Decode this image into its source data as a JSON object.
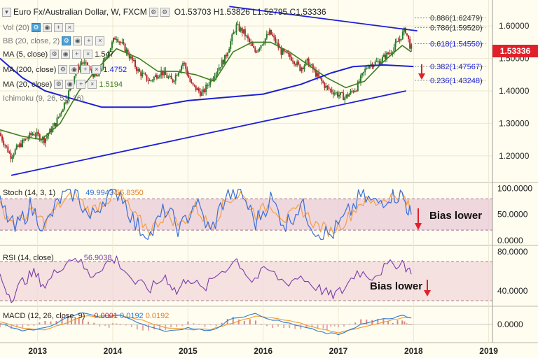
{
  "header": {
    "symbol": "Euro Fx/Australian Dollar, W, FXCM",
    "ohlc": "O1.53703  H1.53826  L1.52795  C1.53336"
  },
  "indicator_legends": [
    {
      "name": "Vol (20)",
      "value": ""
    },
    {
      "name": "BB (20, close, 2)",
      "value": ""
    },
    {
      "name": "MA (5, close)",
      "value": "1.547"
    },
    {
      "name": "MA (200, close)",
      "value": "1.4752"
    },
    {
      "name": "MA (20, close)",
      "value": "1.5194"
    },
    {
      "name": "Ichimoku (9, 26, 52, 26)",
      "value": ""
    }
  ],
  "last_price": "1.53336",
  "colors": {
    "background": "#fffdf0",
    "candle_up": "#2b7a2b",
    "candle_down": "#b8282e",
    "trendline": "#1c1fd6",
    "ma200": "#1c1fd6",
    "ma20": "#3d7d1e",
    "stoch_k": "#3a6fd8",
    "stoch_d": "#f0a04a",
    "rsi": "#7b3ea8",
    "macd": "#2f7ad0",
    "signal": "#f09a2c",
    "price_tag": "#e0202a",
    "arrow": "#e0202a"
  },
  "chart_data": {
    "type": "line",
    "title": "Euro Fx/Australian Dollar, W, FXCM",
    "x_ticks": [
      "2013",
      "2014",
      "2015",
      "2016",
      "2017",
      "2018",
      "2019"
    ],
    "y_ticks": [
      "1.20000",
      "1.30000",
      "1.40000",
      "1.50000",
      "1.60000"
    ],
    "ylim": [
      1.12,
      1.68
    ],
    "fib_levels": [
      {
        "label": "0.886(1.62479)",
        "value": 1.62479
      },
      {
        "label": "0.786(1.59520)",
        "value": 1.5952
      },
      {
        "label": "0.618(1.54550)",
        "value": 1.5455
      },
      {
        "label": "0.382(1.47567)",
        "value": 1.47567
      },
      {
        "label": "0.236(1.43248)",
        "value": 1.43248
      }
    ],
    "price_series": [
      [
        2012.5,
        1.27
      ],
      [
        2012.65,
        1.2
      ],
      [
        2012.8,
        1.24
      ],
      [
        2012.95,
        1.27
      ],
      [
        2013.1,
        1.25
      ],
      [
        2013.25,
        1.3
      ],
      [
        2013.4,
        1.38
      ],
      [
        2013.5,
        1.45
      ],
      [
        2013.6,
        1.49
      ],
      [
        2013.8,
        1.44
      ],
      [
        2013.95,
        1.52
      ],
      [
        2014.05,
        1.57
      ],
      [
        2014.2,
        1.52
      ],
      [
        2014.35,
        1.46
      ],
      [
        2014.5,
        1.43
      ],
      [
        2014.65,
        1.46
      ],
      [
        2014.8,
        1.43
      ],
      [
        2014.95,
        1.49
      ],
      [
        2015.05,
        1.42
      ],
      [
        2015.2,
        1.39
      ],
      [
        2015.35,
        1.45
      ],
      [
        2015.5,
        1.5
      ],
      [
        2015.65,
        1.6
      ],
      [
        2015.75,
        1.58
      ],
      [
        2015.9,
        1.52
      ],
      [
        2016.0,
        1.55
      ],
      [
        2016.1,
        1.58
      ],
      [
        2016.25,
        1.52
      ],
      [
        2016.4,
        1.5
      ],
      [
        2016.5,
        1.47
      ],
      [
        2016.6,
        1.49
      ],
      [
        2016.75,
        1.44
      ],
      [
        2016.85,
        1.41
      ],
      [
        2017.0,
        1.39
      ],
      [
        2017.1,
        1.38
      ],
      [
        2017.25,
        1.41
      ],
      [
        2017.4,
        1.48
      ],
      [
        2017.55,
        1.49
      ],
      [
        2017.7,
        1.52
      ],
      [
        2017.8,
        1.55
      ],
      [
        2017.9,
        1.59
      ],
      [
        2017.97,
        1.533
      ]
    ],
    "ma20_series": [
      [
        2012.5,
        1.28
      ],
      [
        2012.8,
        1.26
      ],
      [
        2013.05,
        1.25
      ],
      [
        2013.3,
        1.3
      ],
      [
        2013.55,
        1.4
      ],
      [
        2013.8,
        1.47
      ],
      [
        2014.05,
        1.53
      ],
      [
        2014.35,
        1.5
      ],
      [
        2014.6,
        1.46
      ],
      [
        2014.85,
        1.46
      ],
      [
        2015.1,
        1.45
      ],
      [
        2015.35,
        1.43
      ],
      [
        2015.6,
        1.52
      ],
      [
        2015.85,
        1.55
      ],
      [
        2016.1,
        1.55
      ],
      [
        2016.35,
        1.52
      ],
      [
        2016.6,
        1.48
      ],
      [
        2016.85,
        1.44
      ],
      [
        2017.1,
        1.41
      ],
      [
        2017.35,
        1.43
      ],
      [
        2017.6,
        1.49
      ],
      [
        2017.85,
        1.54
      ],
      [
        2017.97,
        1.52
      ]
    ],
    "ma200_series": [
      [
        2012.5,
        1.5
      ],
      [
        2012.8,
        1.44
      ],
      [
        2013.1,
        1.4
      ],
      [
        2013.4,
        1.38
      ],
      [
        2013.7,
        1.36
      ],
      [
        2013.85,
        1.35
      ],
      [
        2014.5,
        1.35
      ],
      [
        2015.0,
        1.37
      ],
      [
        2015.5,
        1.38
      ],
      [
        2016.0,
        1.39
      ],
      [
        2016.5,
        1.42
      ],
      [
        2016.9,
        1.455
      ],
      [
        2017.2,
        1.475
      ],
      [
        2017.6,
        1.48
      ],
      [
        2018.0,
        1.4752
      ]
    ],
    "trendlines": [
      {
        "from": [
          2012.65,
          1.14
        ],
        "to": [
          2017.9,
          1.4
        ]
      },
      {
        "from": [
          2015.55,
          1.66
        ],
        "to": [
          2018.05,
          1.585
        ]
      }
    ],
    "stoch": {
      "label": "Stoch (14, 3, 1)",
      "k_value": "49.9943",
      "d_value": "55.8350",
      "y_ticks": [
        "0.0000",
        "50.0000",
        "100.0000"
      ],
      "ylim": [
        0,
        100
      ],
      "k_series": [
        [
          2012.5,
          70
        ],
        [
          2012.7,
          20
        ],
        [
          2012.9,
          65
        ],
        [
          2013.1,
          25
        ],
        [
          2013.3,
          80
        ],
        [
          2013.5,
          95
        ],
        [
          2013.7,
          40
        ],
        [
          2013.9,
          85
        ],
        [
          2014.1,
          95
        ],
        [
          2014.3,
          30
        ],
        [
          2014.5,
          10
        ],
        [
          2014.7,
          60
        ],
        [
          2014.9,
          20
        ],
        [
          2015.1,
          75
        ],
        [
          2015.3,
          15
        ],
        [
          2015.5,
          85
        ],
        [
          2015.7,
          95
        ],
        [
          2015.9,
          35
        ],
        [
          2016.1,
          80
        ],
        [
          2016.3,
          30
        ],
        [
          2016.5,
          70
        ],
        [
          2016.7,
          20
        ],
        [
          2016.9,
          10
        ],
        [
          2017.1,
          45
        ],
        [
          2017.3,
          85
        ],
        [
          2017.5,
          70
        ],
        [
          2017.7,
          90
        ],
        [
          2017.85,
          85
        ],
        [
          2017.97,
          50
        ]
      ],
      "d_series": [
        [
          2012.5,
          65
        ],
        [
          2012.7,
          30
        ],
        [
          2012.9,
          55
        ],
        [
          2013.1,
          35
        ],
        [
          2013.3,
          70
        ],
        [
          2013.5,
          88
        ],
        [
          2013.7,
          55
        ],
        [
          2013.9,
          78
        ],
        [
          2014.1,
          88
        ],
        [
          2014.3,
          45
        ],
        [
          2014.5,
          20
        ],
        [
          2014.7,
          50
        ],
        [
          2014.9,
          30
        ],
        [
          2015.1,
          65
        ],
        [
          2015.3,
          25
        ],
        [
          2015.5,
          75
        ],
        [
          2015.7,
          90
        ],
        [
          2015.9,
          50
        ],
        [
          2016.1,
          70
        ],
        [
          2016.3,
          40
        ],
        [
          2016.5,
          62
        ],
        [
          2016.7,
          30
        ],
        [
          2016.9,
          18
        ],
        [
          2017.1,
          38
        ],
        [
          2017.3,
          75
        ],
        [
          2017.5,
          72
        ],
        [
          2017.7,
          85
        ],
        [
          2017.85,
          88
        ],
        [
          2017.97,
          56
        ]
      ]
    },
    "rsi": {
      "label": "RSI (14, close)",
      "value": "56.9038",
      "y_ticks": [
        "40.0000",
        "80.0000"
      ],
      "ylim": [
        25,
        85
      ],
      "series": [
        [
          2012.5,
          55
        ],
        [
          2012.65,
          32
        ],
        [
          2012.8,
          50
        ],
        [
          2012.95,
          58
        ],
        [
          2013.1,
          45
        ],
        [
          2013.3,
          65
        ],
        [
          2013.5,
          76
        ],
        [
          2013.7,
          55
        ],
        [
          2013.9,
          68
        ],
        [
          2014.05,
          72
        ],
        [
          2014.3,
          48
        ],
        [
          2014.5,
          42
        ],
        [
          2014.7,
          55
        ],
        [
          2014.85,
          38
        ],
        [
          2015.0,
          55
        ],
        [
          2015.2,
          40
        ],
        [
          2015.4,
          58
        ],
        [
          2015.65,
          72
        ],
        [
          2015.85,
          50
        ],
        [
          2016.05,
          62
        ],
        [
          2016.3,
          48
        ],
        [
          2016.5,
          55
        ],
        [
          2016.75,
          42
        ],
        [
          2016.9,
          35
        ],
        [
          2017.05,
          40
        ],
        [
          2017.25,
          60
        ],
        [
          2017.45,
          55
        ],
        [
          2017.65,
          65
        ],
        [
          2017.85,
          70
        ],
        [
          2017.97,
          57
        ]
      ]
    },
    "macd": {
      "label": "MACD (12, 26, close, 9)",
      "hist_value": "0.0001",
      "macd_value": "0.0192",
      "signal_value": "0.0192",
      "y_ticks": [
        "0.0000"
      ],
      "ylim": [
        -0.05,
        0.05
      ],
      "macd_series": [
        [
          2012.5,
          0.005
        ],
        [
          2012.8,
          -0.02
        ],
        [
          2013.1,
          -0.01
        ],
        [
          2013.4,
          0.02
        ],
        [
          2013.6,
          0.035
        ],
        [
          2013.9,
          0.02
        ],
        [
          2014.1,
          0.03
        ],
        [
          2014.4,
          0.0
        ],
        [
          2014.7,
          -0.02
        ],
        [
          2015.0,
          -0.01
        ],
        [
          2015.3,
          -0.02
        ],
        [
          2015.6,
          0.02
        ],
        [
          2015.9,
          0.03
        ],
        [
          2016.2,
          0.01
        ],
        [
          2016.5,
          -0.005
        ],
        [
          2016.8,
          -0.025
        ],
        [
          2017.0,
          -0.03
        ],
        [
          2017.3,
          0.0
        ],
        [
          2017.6,
          0.015
        ],
        [
          2017.85,
          0.025
        ],
        [
          2017.97,
          0.0192
        ]
      ],
      "signal_series": [
        [
          2012.5,
          0.008
        ],
        [
          2012.8,
          -0.012
        ],
        [
          2013.1,
          -0.015
        ],
        [
          2013.4,
          0.005
        ],
        [
          2013.6,
          0.025
        ],
        [
          2013.9,
          0.025
        ],
        [
          2014.1,
          0.027
        ],
        [
          2014.4,
          0.012
        ],
        [
          2014.7,
          -0.01
        ],
        [
          2015.0,
          -0.015
        ],
        [
          2015.3,
          -0.015
        ],
        [
          2015.6,
          0.005
        ],
        [
          2015.9,
          0.025
        ],
        [
          2016.2,
          0.018
        ],
        [
          2016.5,
          0.003
        ],
        [
          2016.8,
          -0.015
        ],
        [
          2017.0,
          -0.025
        ],
        [
          2017.3,
          -0.01
        ],
        [
          2017.6,
          0.008
        ],
        [
          2017.85,
          0.02
        ],
        [
          2017.97,
          0.0192
        ]
      ]
    }
  },
  "annotations": {
    "stoch_bias": "Bias lower",
    "rsi_bias": "Bias lower"
  }
}
